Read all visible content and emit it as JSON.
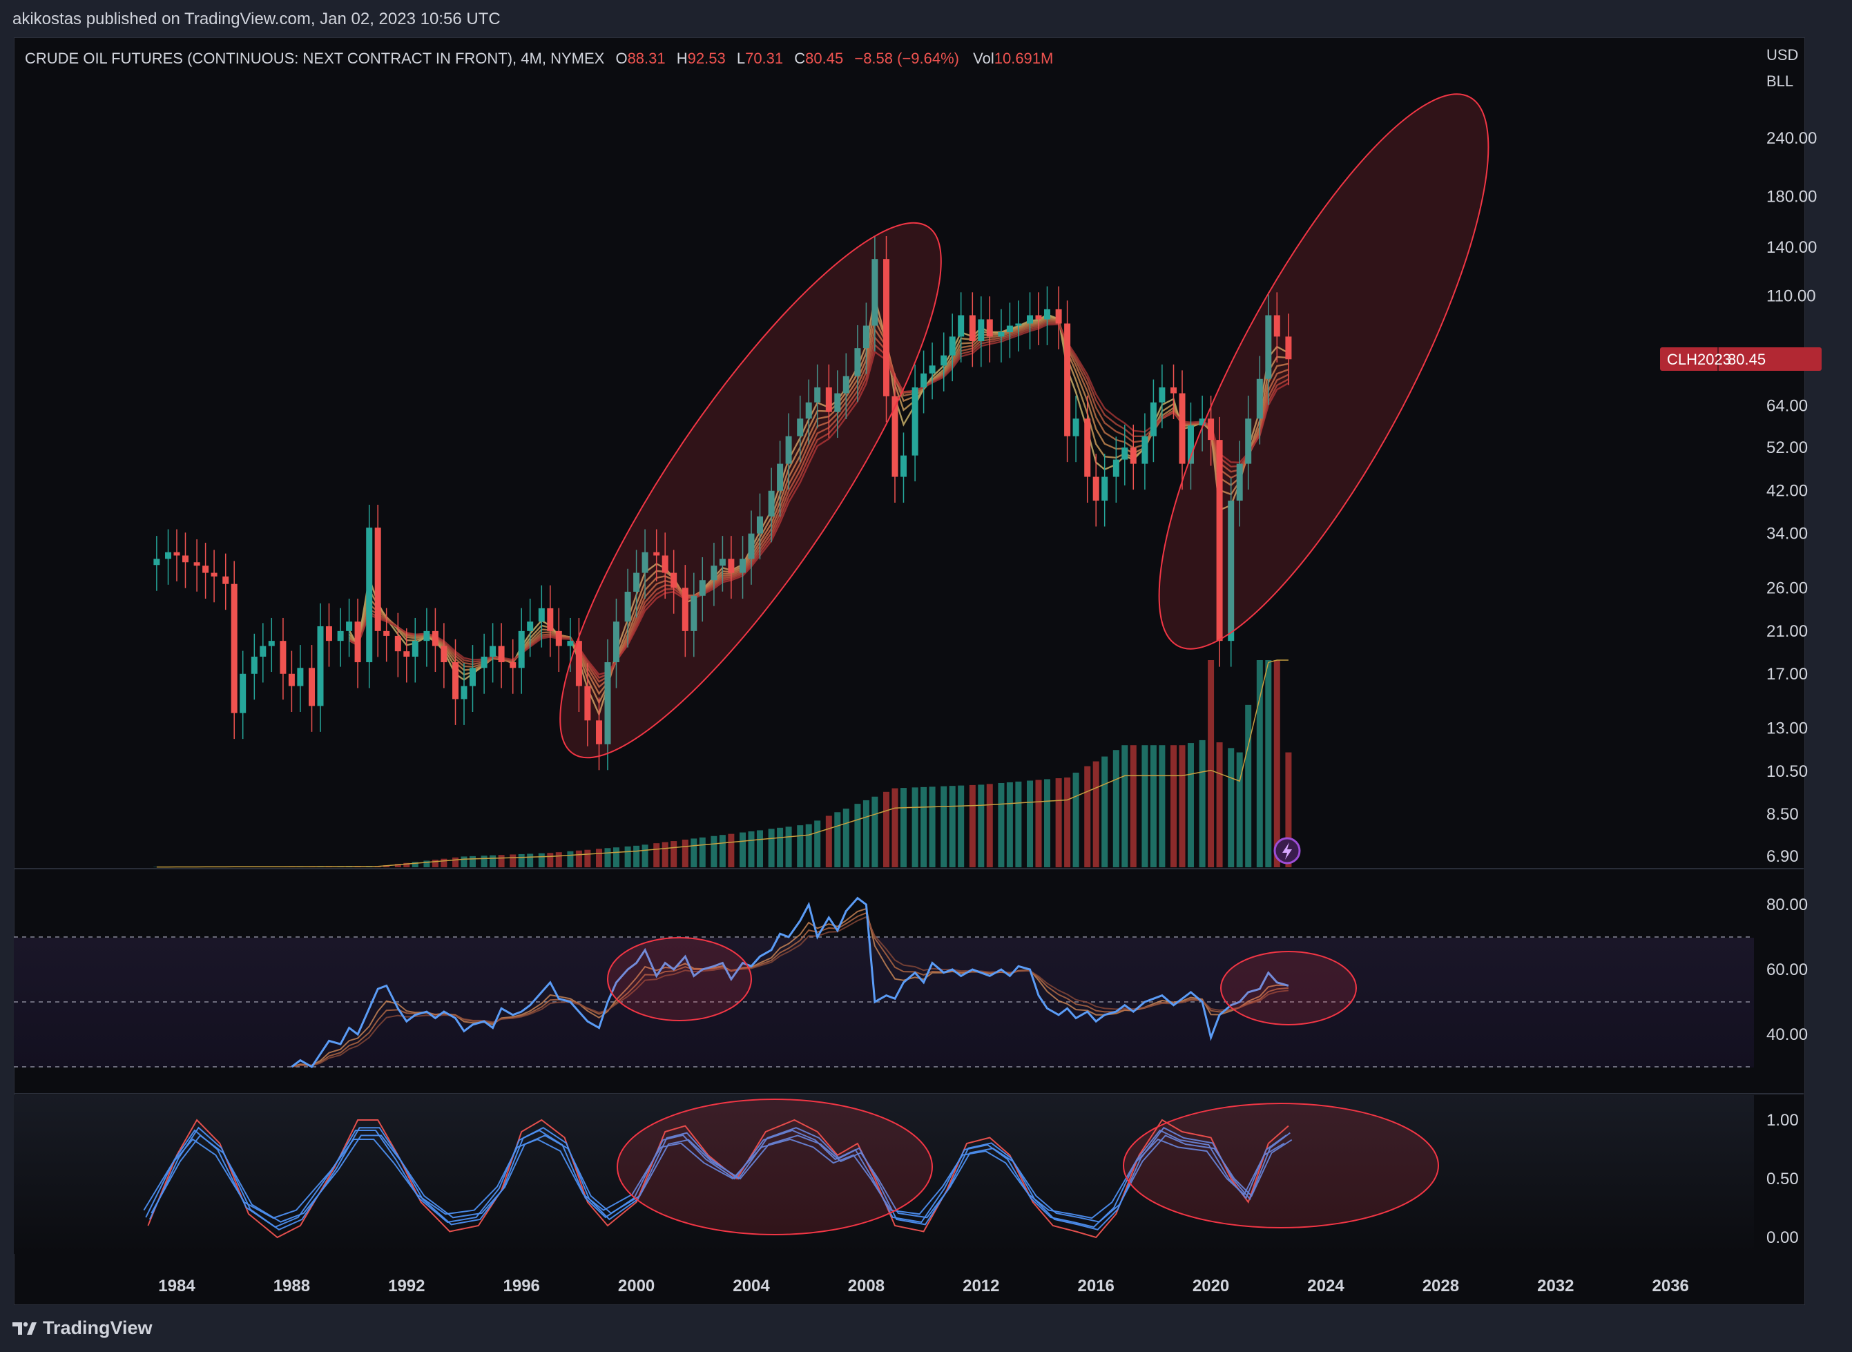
{
  "publish_line": "akikostas published on TradingView.com, Jan 02, 2023 10:56 UTC",
  "footer": {
    "brand": "TradingView"
  },
  "legend": {
    "symbol": "CRUDE OIL FUTURES (CONTINUOUS: NEXT CONTRACT IN FRONT), 4M, NYMEX",
    "o_label": "O",
    "o_value": "88.31",
    "h_label": "H",
    "h_value": "92.53",
    "l_label": "L",
    "l_value": "70.31",
    "c_label": "C",
    "c_value": "80.45",
    "change": "−8.58 (−9.64%)",
    "vol_label": "Vol",
    "vol_value": "10.691M"
  },
  "currency": {
    "line1": "USD",
    "line2": "BLL"
  },
  "price_tag": {
    "symbol": "CLH2023",
    "price": "80.45"
  },
  "colors": {
    "up": "#26a69a",
    "down": "#ef5350",
    "up_dark": "#1e6e64",
    "down_dark": "#8c2b2b",
    "rsi_line": "#5b9cf6",
    "highlight_stroke": "#f23645",
    "highlight_fill": "rgba(242,54,69,0.16)",
    "background": "#0b0c10",
    "axis_text": "#d1d4dc"
  },
  "chart_data": [
    {
      "type": "candlestick",
      "panel": "price",
      "scale": "log",
      "x_ticks": [
        "1984",
        "1988",
        "1992",
        "1996",
        "2000",
        "2004",
        "2008",
        "2012",
        "2016",
        "2020",
        "2024",
        "2028",
        "2032",
        "2036"
      ],
      "y_ticks": [
        "240.00",
        "180.00",
        "140.00",
        "110.00",
        "64.00",
        "52.00",
        "42.00",
        "34.00",
        "26.00",
        "21.00",
        "17.00",
        "13.00",
        "10.50",
        "8.50",
        "6.90"
      ],
      "ylim": [
        6.9,
        240
      ],
      "series": [
        {
          "name": "price",
          "x": [
            1983.3,
            1983.7,
            1984.0,
            1984.3,
            1984.7,
            1985.0,
            1985.3,
            1985.7,
            1986.0,
            1986.3,
            1986.7,
            1987.0,
            1987.3,
            1987.7,
            1988.0,
            1988.3,
            1988.7,
            1989.0,
            1989.3,
            1989.7,
            1990.0,
            1990.3,
            1990.7,
            1991.0,
            1991.3,
            1991.7,
            1992.0,
            1992.3,
            1992.7,
            1993.0,
            1993.3,
            1993.7,
            1994.0,
            1994.3,
            1994.7,
            1995.0,
            1995.3,
            1995.7,
            1996.0,
            1996.3,
            1996.7,
            1997.0,
            1997.3,
            1997.7,
            1998.0,
            1998.3,
            1998.7,
            1999.0,
            1999.3,
            1999.7,
            2000.0,
            2000.3,
            2000.7,
            2001.0,
            2001.3,
            2001.7,
            2002.0,
            2002.3,
            2002.7,
            2003.0,
            2003.3,
            2003.7,
            2004.0,
            2004.3,
            2004.7,
            2005.0,
            2005.3,
            2005.7,
            2006.0,
            2006.3,
            2006.7,
            2007.0,
            2007.3,
            2007.7,
            2008.0,
            2008.3,
            2008.7,
            2009.0,
            2009.3,
            2009.7,
            2010.0,
            2010.3,
            2010.7,
            2011.0,
            2011.3,
            2011.7,
            2012.0,
            2012.3,
            2012.7,
            2013.0,
            2013.3,
            2013.7,
            2014.0,
            2014.3,
            2014.7,
            2015.0,
            2015.3,
            2015.7,
            2016.0,
            2016.3,
            2016.7,
            2017.0,
            2017.3,
            2017.7,
            2018.0,
            2018.3,
            2018.7,
            2019.0,
            2019.3,
            2019.7,
            2020.0,
            2020.3,
            2020.7,
            2021.0,
            2021.3,
            2021.7,
            2022.0,
            2022.3,
            2022.7
          ],
          "close": [
            30.0,
            31.0,
            30.5,
            29.5,
            29.0,
            28.0,
            27.5,
            26.5,
            14.0,
            17.0,
            18.5,
            19.5,
            20.0,
            17.0,
            16.0,
            17.5,
            14.5,
            21.5,
            20.0,
            21.0,
            22.0,
            18.0,
            35.0,
            21.0,
            20.5,
            19.0,
            18.5,
            20.0,
            21.0,
            19.5,
            18.0,
            15.0,
            16.0,
            17.5,
            18.5,
            19.5,
            18.0,
            17.5,
            21.0,
            22.0,
            23.5,
            21.0,
            19.5,
            20.0,
            16.0,
            13.5,
            12.0,
            18.0,
            22.0,
            25.5,
            28.0,
            31.0,
            30.5,
            28.0,
            26.0,
            21.0,
            25.0,
            27.0,
            29.0,
            30.0,
            28.0,
            30.0,
            34.0,
            37.0,
            42.0,
            48.0,
            55.0,
            60.0,
            65.0,
            70.0,
            62.0,
            68.0,
            74.0,
            85.0,
            95.0,
            132.0,
            67.0,
            45.0,
            50.0,
            70.0,
            75.0,
            78.0,
            82.0,
            90.0,
            100.0,
            88.0,
            98.0,
            90.0,
            92.0,
            95.0,
            96.0,
            100.0,
            98.0,
            103.0,
            96.0,
            55.0,
            60.0,
            45.0,
            40.0,
            45.0,
            49.0,
            52.0,
            48.0,
            55.0,
            65.0,
            70.0,
            68.0,
            48.0,
            58.0,
            60.0,
            54.0,
            20.0,
            40.0,
            48.0,
            60.0,
            73.0,
            100.0,
            90.0,
            80.45
          ]
        },
        {
          "name": "Vol",
          "x": [
            1983.3,
            1987.0,
            1991.0,
            1994.0,
            1997.0,
            2000.0,
            2003.0,
            2006.0,
            2009.0,
            2012.0,
            2015.0,
            2017.0,
            2019.0,
            2020.0,
            2021.0,
            2022.7
          ],
          "values": [
            0.01,
            0.02,
            0.03,
            0.3,
            0.4,
            0.6,
            0.9,
            1.2,
            2.2,
            2.3,
            2.5,
            3.4,
            3.4,
            3.6,
            3.2,
            10.691
          ]
        }
      ],
      "annotations": [
        "highlight-ellipse",
        "highlight-ellipse",
        "highlight-ellipse"
      ]
    },
    {
      "type": "line",
      "panel": "oscillator",
      "y_ticks": [
        "80.00",
        "60.00",
        "40.00"
      ],
      "ylim": [
        30,
        85
      ],
      "bands": [
        70,
        50,
        30
      ],
      "series": [
        {
          "x": [
            1988.0,
            1988.3,
            1988.7,
            1989.0,
            1989.3,
            1989.7,
            1990.0,
            1990.3,
            1990.7,
            1991.0,
            1991.3,
            1991.7,
            1992.0,
            1992.3,
            1992.7,
            1993.0,
            1993.3,
            1993.7,
            1994.0,
            1994.3,
            1994.7,
            1995.0,
            1995.3,
            1995.7,
            1996.0,
            1996.3,
            1996.7,
            1997.0,
            1997.3,
            1997.7,
            1998.0,
            1998.3,
            1998.7,
            1999.0,
            1999.3,
            1999.7,
            2000.0,
            2000.3,
            2000.7,
            2001.0,
            2001.3,
            2001.7,
            2002.0,
            2002.3,
            2002.7,
            2003.0,
            2003.3,
            2003.7,
            2004.0,
            2004.3,
            2004.7,
            2005.0,
            2005.3,
            2005.7,
            2006.0,
            2006.3,
            2006.7,
            2007.0,
            2007.3,
            2007.7,
            2008.0,
            2008.3,
            2008.7,
            2009.0,
            2009.3,
            2009.7,
            2010.0,
            2010.3,
            2010.7,
            2011.0,
            2011.3,
            2011.7,
            2012.0,
            2012.3,
            2012.7,
            2013.0,
            2013.3,
            2013.7,
            2014.0,
            2014.3,
            2014.7,
            2015.0,
            2015.3,
            2015.7,
            2016.0,
            2016.3,
            2016.7,
            2017.0,
            2017.3,
            2017.7,
            2018.0,
            2018.3,
            2018.7,
            2019.0,
            2019.3,
            2019.7,
            2020.0,
            2020.3,
            2020.7,
            2021.0,
            2021.3,
            2021.7,
            2022.0,
            2022.3,
            2022.7
          ],
          "values": [
            30,
            32,
            30,
            34,
            38,
            37,
            42,
            40,
            48,
            54,
            55,
            48,
            44,
            46,
            47,
            45,
            47,
            45,
            41,
            43,
            44,
            42,
            48,
            46,
            47,
            49,
            53,
            56,
            51,
            50,
            47,
            44,
            42,
            50,
            56,
            60,
            62,
            66,
            58,
            62,
            60,
            64,
            58,
            60,
            61,
            62,
            57,
            62,
            61,
            64,
            66,
            71,
            70,
            75,
            80,
            70,
            76,
            72,
            78,
            82,
            80,
            50,
            52,
            51,
            56,
            59,
            56,
            62,
            59,
            60,
            58,
            60,
            59,
            58,
            60,
            58,
            61,
            60,
            52,
            48,
            46,
            48,
            45,
            47,
            44,
            46,
            47,
            49,
            47,
            50,
            51,
            52,
            49,
            51,
            53,
            50,
            39,
            46,
            49,
            50,
            53,
            54,
            59,
            56,
            55
          ]
        }
      ],
      "annotations": [
        "highlight-ellipse",
        "highlight-ellipse"
      ]
    },
    {
      "type": "line",
      "panel": "stochastic",
      "y_ticks": [
        "1.00",
        "0.50",
        "0.00"
      ],
      "ylim": [
        0,
        1
      ],
      "series": [
        {
          "x": [
            1983.0,
            1984.0,
            1984.7,
            1985.5,
            1986.5,
            1987.5,
            1988.3,
            1989.5,
            1990.3,
            1991.0,
            1991.7,
            1992.5,
            1993.5,
            1994.5,
            1995.3,
            1996.0,
            1996.7,
            1997.5,
            1998.3,
            1999.0,
            2000.0,
            2001.0,
            2001.7,
            2002.5,
            2003.5,
            2004.5,
            2005.5,
            2006.3,
            2007.0,
            2007.7,
            2008.3,
            2009.0,
            2010.0,
            2010.8,
            2011.5,
            2012.3,
            2013.0,
            2013.8,
            2014.5,
            2015.3,
            2016.0,
            2016.7,
            2017.5,
            2018.3,
            2019.0,
            2020.0,
            2020.7,
            2021.3,
            2022.0,
            2022.7
          ],
          "values": [
            0.1,
            0.7,
            1.0,
            0.8,
            0.2,
            0.0,
            0.1,
            0.6,
            1.0,
            1.0,
            0.7,
            0.3,
            0.05,
            0.1,
            0.4,
            0.9,
            1.0,
            0.85,
            0.3,
            0.1,
            0.3,
            0.9,
            0.95,
            0.7,
            0.5,
            0.9,
            1.0,
            0.9,
            0.7,
            0.8,
            0.5,
            0.1,
            0.05,
            0.4,
            0.8,
            0.85,
            0.7,
            0.3,
            0.1,
            0.05,
            0.0,
            0.2,
            0.7,
            1.0,
            0.9,
            0.85,
            0.5,
            0.3,
            0.8,
            0.95
          ]
        }
      ],
      "annotations": [
        "highlight-ellipse",
        "highlight-ellipse"
      ]
    }
  ]
}
